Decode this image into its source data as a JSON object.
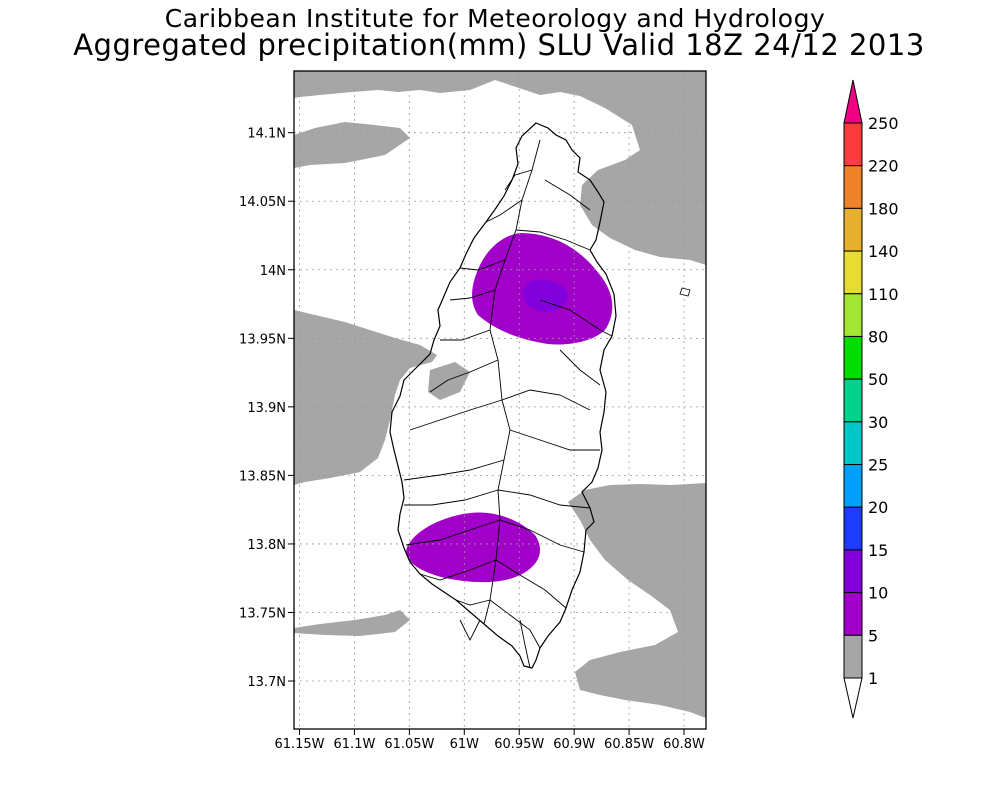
{
  "title": {
    "line1": "Caribbean Institute for Meteorology and Hydrology",
    "line2": "Aggregated precipitation(mm) SLU Valid 18Z 24/12 2013"
  },
  "map": {
    "lon_range": [
      61.155,
      60.78
    ],
    "lat_range": [
      13.665,
      14.145
    ],
    "lon_ticks": [
      "61.15W",
      "61.1W",
      "61.05W",
      "61W",
      "60.95W",
      "60.9W",
      "60.85W",
      "60.8W"
    ],
    "lat_ticks": [
      "14.1N",
      "14.05N",
      "14N",
      "13.95N",
      "13.9N",
      "13.85N",
      "13.8N",
      "13.75N",
      "13.7N"
    ],
    "grid": true,
    "colors": {
      "band_1_5": "#a6a6a6",
      "band_5_10": "#a000c8",
      "band_10_15": "#8200dc",
      "coast": "#000000"
    }
  },
  "colorbar": {
    "levels": [
      "1",
      "5",
      "10",
      "15",
      "20",
      "25",
      "30",
      "50",
      "80",
      "110",
      "140",
      "180",
      "220",
      "250"
    ],
    "colors": [
      "#ffffff",
      "#a6a6a6",
      "#a000c8",
      "#8200dc",
      "#1e3cff",
      "#00a0ff",
      "#00c8c8",
      "#00d28c",
      "#00dc00",
      "#a0e632",
      "#e6dc32",
      "#e6af2d",
      "#f08228",
      "#fa3c3c",
      "#f00082"
    ]
  }
}
